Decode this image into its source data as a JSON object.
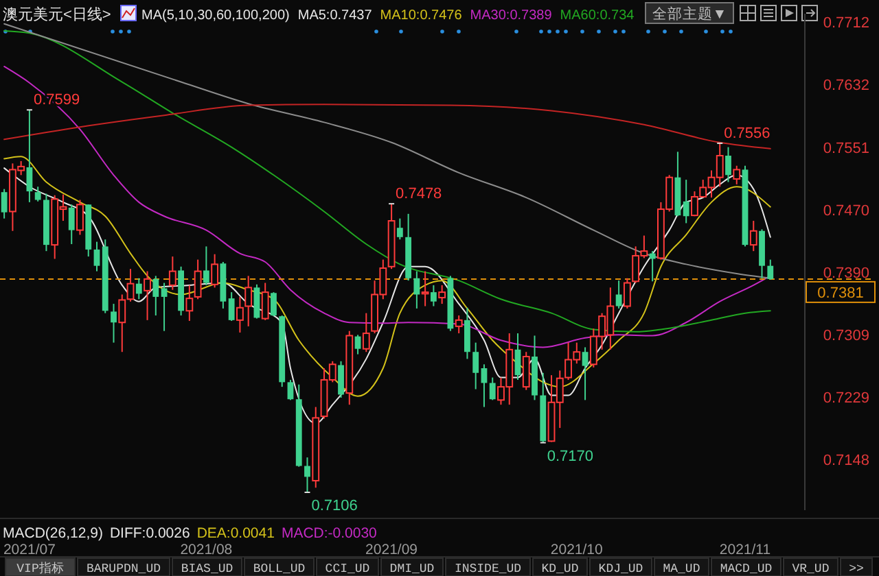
{
  "chart_data": {
    "type": "candlestick",
    "title": "澳元美元<日线>",
    "legend_title": "MA(5,10,30,60,100,200)",
    "legend": "top",
    "categories": [
      null,
      null,
      null,
      "2021/07",
      null,
      null,
      null,
      null,
      null,
      null,
      null,
      null,
      null,
      null,
      null,
      null,
      null,
      null,
      null,
      null,
      null,
      null,
      null,
      null,
      "2021/08",
      null,
      null,
      null,
      null,
      null,
      null,
      null,
      null,
      null,
      null,
      null,
      null,
      null,
      null,
      null,
      null,
      null,
      null,
      null,
      null,
      null,
      "2021/09",
      null,
      null,
      null,
      null,
      null,
      null,
      null,
      null,
      null,
      null,
      null,
      null,
      null,
      null,
      null,
      null,
      null,
      null,
      null,
      null,
      null,
      "2021/10",
      null,
      null,
      null,
      null,
      null,
      null,
      null,
      null,
      null,
      null,
      null,
      null,
      null,
      null,
      null,
      null,
      null,
      null,
      null,
      "2021/11",
      null,
      null,
      null
    ],
    "ohlc": [
      [
        0.7493,
        0.7497,
        0.7459,
        0.7467
      ],
      [
        0.7468,
        0.753,
        0.7443,
        0.7522
      ],
      [
        0.7521,
        0.7533,
        0.7515,
        0.7526
      ],
      [
        0.7525,
        0.7599,
        0.748,
        0.7494
      ],
      [
        0.7493,
        0.75,
        0.7481,
        0.7483
      ],
      [
        0.7483,
        0.7491,
        0.7417,
        0.7425
      ],
      [
        0.7425,
        0.7489,
        0.7407,
        0.7484
      ],
      [
        0.7471,
        0.749,
        0.7456,
        0.7474
      ],
      [
        0.7473,
        0.7477,
        0.7426,
        0.7444
      ],
      [
        0.7444,
        0.7483,
        0.7438,
        0.7477
      ],
      [
        0.7477,
        0.7477,
        0.741,
        0.7419
      ],
      [
        0.7419,
        0.7429,
        0.7391,
        0.7398
      ],
      [
        0.7423,
        0.7432,
        0.7337,
        0.734
      ],
      [
        0.7339,
        0.7349,
        0.7299,
        0.7325
      ],
      [
        0.7325,
        0.7361,
        0.7287,
        0.7354
      ],
      [
        0.7355,
        0.7394,
        0.7352,
        0.7375
      ],
      [
        0.7375,
        0.7382,
        0.7355,
        0.7362
      ],
      [
        0.7366,
        0.7391,
        0.7328,
        0.7381
      ],
      [
        0.7381,
        0.7385,
        0.7334,
        0.7358
      ],
      [
        0.7369,
        0.7376,
        0.7314,
        0.7358
      ],
      [
        0.7373,
        0.741,
        0.7367,
        0.7391
      ],
      [
        0.7392,
        0.7397,
        0.7334,
        0.734
      ],
      [
        0.734,
        0.7373,
        0.7327,
        0.7356
      ],
      [
        0.7358,
        0.7406,
        0.7355,
        0.7391
      ],
      [
        0.7392,
        0.7423,
        0.7373,
        0.7376
      ],
      [
        0.7374,
        0.7413,
        0.737,
        0.74
      ],
      [
        0.7401,
        0.7403,
        0.7343,
        0.7352
      ],
      [
        0.7356,
        0.7364,
        0.7327,
        0.7328
      ],
      [
        0.7328,
        0.7358,
        0.7312,
        0.7344
      ],
      [
        0.7346,
        0.7385,
        0.732,
        0.737
      ],
      [
        0.737,
        0.7374,
        0.733,
        0.7331
      ],
      [
        0.733,
        0.7376,
        0.7328,
        0.7364
      ],
      [
        0.7363,
        0.7364,
        0.7333,
        0.7334
      ],
      [
        0.7333,
        0.7334,
        0.7242,
        0.7248
      ],
      [
        0.7248,
        0.7251,
        0.7225,
        0.7226
      ],
      [
        0.7226,
        0.7245,
        0.7139,
        0.714
      ],
      [
        0.714,
        0.7151,
        0.7106,
        0.7126
      ],
      [
        0.7121,
        0.7216,
        0.7112,
        0.7202
      ],
      [
        0.7204,
        0.7266,
        0.7201,
        0.7251
      ],
      [
        0.7251,
        0.7275,
        0.7248,
        0.7271
      ],
      [
        0.727,
        0.7275,
        0.7228,
        0.7232
      ],
      [
        0.7234,
        0.7314,
        0.7219,
        0.7308
      ],
      [
        0.7307,
        0.7309,
        0.7284,
        0.7291
      ],
      [
        0.7291,
        0.7337,
        0.7287,
        0.7311
      ],
      [
        0.7314,
        0.7379,
        0.7311,
        0.7361
      ],
      [
        0.7361,
        0.7406,
        0.7355,
        0.7395
      ],
      [
        0.7397,
        0.7478,
        0.7394,
        0.7456
      ],
      [
        0.7447,
        0.7459,
        0.7432,
        0.7435
      ],
      [
        0.7435,
        0.7465,
        0.7379,
        0.7382
      ],
      [
        0.7382,
        0.7391,
        0.7343,
        0.7361
      ],
      [
        0.7362,
        0.7391,
        0.7346,
        0.7364
      ],
      [
        0.7364,
        0.7373,
        0.7346,
        0.7352
      ],
      [
        0.7357,
        0.7373,
        0.7349,
        0.7364
      ],
      [
        0.7382,
        0.7385,
        0.7314,
        0.7317
      ],
      [
        0.732,
        0.7334,
        0.7311,
        0.7328
      ],
      [
        0.7328,
        0.7344,
        0.7278,
        0.7287
      ],
      [
        0.7287,
        0.7299,
        0.7239,
        0.726
      ],
      [
        0.7266,
        0.7271,
        0.7216,
        0.7247
      ],
      [
        0.7247,
        0.7254,
        0.7225,
        0.7226
      ],
      [
        0.7225,
        0.7254,
        0.7219,
        0.7242
      ],
      [
        0.7242,
        0.7311,
        0.7219,
        0.729
      ],
      [
        0.729,
        0.7311,
        0.7251,
        0.7257
      ],
      [
        0.7242,
        0.7287,
        0.7238,
        0.7281
      ],
      [
        0.7281,
        0.7308,
        0.7225,
        0.7231
      ],
      [
        0.7231,
        0.726,
        0.717,
        0.7172
      ],
      [
        0.7172,
        0.7257,
        0.7171,
        0.7222
      ],
      [
        0.7222,
        0.7263,
        0.7189,
        0.7253
      ],
      [
        0.7254,
        0.7299,
        0.7251,
        0.7277
      ],
      [
        0.7277,
        0.7299,
        0.7272,
        0.7287
      ],
      [
        0.7287,
        0.7293,
        0.7225,
        0.7269
      ],
      [
        0.7271,
        0.7317,
        0.7267,
        0.7307
      ],
      [
        0.7307,
        0.7337,
        0.729,
        0.7333
      ],
      [
        0.7309,
        0.737,
        0.729,
        0.7346
      ],
      [
        0.7361,
        0.7379,
        0.7343,
        0.7346
      ],
      [
        0.7346,
        0.7382,
        0.7343,
        0.7376
      ],
      [
        0.7378,
        0.7423,
        0.7376,
        0.7411
      ],
      [
        0.7411,
        0.7437,
        0.7408,
        0.7417
      ],
      [
        0.7414,
        0.7417,
        0.7378,
        0.7407
      ],
      [
        0.7408,
        0.748,
        0.7406,
        0.7471
      ],
      [
        0.7471,
        0.7515,
        0.7468,
        0.7512
      ],
      [
        0.7512,
        0.7545,
        0.7462,
        0.7463
      ],
      [
        0.7481,
        0.7509,
        0.7453,
        0.7462
      ],
      [
        0.7463,
        0.7494,
        0.7462,
        0.7487
      ],
      [
        0.7487,
        0.7509,
        0.7486,
        0.7499
      ],
      [
        0.7499,
        0.7521,
        0.7486,
        0.7512
      ],
      [
        0.7512,
        0.7556,
        0.75,
        0.754
      ],
      [
        0.754,
        0.7551,
        0.7506,
        0.7515
      ],
      [
        0.751,
        0.7527,
        0.7503,
        0.7522
      ],
      [
        0.7522,
        0.7527,
        0.7423,
        0.7425
      ],
      [
        0.7425,
        0.7456,
        0.7417,
        0.7443
      ],
      [
        0.7443,
        0.7445,
        0.7382,
        0.7398
      ],
      [
        0.7398,
        0.7406,
        0.738,
        0.7381
      ]
    ],
    "series": [
      {
        "type": "line",
        "name": "MA5:0.7437",
        "color": "#e6e6e6",
        "values": [
          0.7524,
          null,
          null,
          0.75,
          null,
          null,
          null,
          0.748,
          null,
          null,
          0.7462,
          null,
          null,
          null,
          0.7373,
          null,
          0.7352,
          null,
          0.737,
          null,
          null,
          null,
          0.7373,
          null,
          null,
          null,
          0.7376,
          null,
          null,
          0.7349,
          null,
          null,
          null,
          0.7325,
          0.7266,
          null,
          null,
          0.7195,
          null,
          0.7219,
          null,
          null,
          null,
          0.7278,
          null,
          0.7325,
          null,
          null,
          0.7397,
          null,
          0.7397,
          null,
          null,
          null,
          0.7349,
          null,
          null,
          0.7302,
          null,
          0.7254,
          null,
          0.7254,
          null,
          0.7278,
          null,
          0.7231,
          null,
          0.7231,
          null,
          0.7266,
          null,
          0.7296,
          null,
          0.7337,
          null,
          null,
          0.7397,
          null,
          null,
          0.7444,
          null,
          0.748,
          null,
          0.7486,
          null,
          0.7503,
          null,
          0.7515,
          null,
          0.7497,
          null,
          0.7435
        ]
      },
      {
        "type": "line",
        "name": "MA10:0.7476",
        "color": "#d4c21a",
        "values": [
          0.7536,
          null,
          0.7539,
          null,
          null,
          0.7506,
          null,
          null,
          null,
          0.748,
          null,
          null,
          0.7462,
          null,
          null,
          0.7414,
          null,
          0.7385,
          null,
          null,
          null,
          0.7361,
          null,
          null,
          null,
          null,
          0.7376,
          null,
          null,
          0.7367,
          null,
          null,
          0.7355,
          null,
          null,
          0.7302,
          null,
          null,
          null,
          0.7254,
          null,
          null,
          0.723,
          null,
          null,
          0.7266,
          null,
          0.7337,
          null,
          null,
          0.7373,
          null,
          0.7379,
          null,
          null,
          0.7343,
          null,
          null,
          0.7302,
          null,
          null,
          0.7272,
          null,
          null,
          0.7248,
          null,
          0.7242,
          null,
          null,
          null,
          0.7272,
          null,
          null,
          0.7302,
          null,
          null,
          0.7337,
          null,
          0.7397,
          null,
          null,
          0.7438,
          null,
          null,
          0.748,
          null,
          null,
          0.75,
          null,
          null,
          null,
          0.7474
        ]
      },
      {
        "type": "line",
        "name": "MA30:0.7389",
        "color": "#c42ac4",
        "values": [
          0.7655,
          null,
          null,
          0.7634,
          null,
          null,
          null,
          null,
          null,
          0.7574,
          null,
          null,
          null,
          0.7515,
          null,
          null,
          0.748,
          null,
          null,
          0.7462,
          null,
          null,
          null,
          null,
          0.7444,
          null,
          null,
          null,
          0.7414,
          null,
          null,
          0.7403,
          null,
          null,
          0.7367,
          null,
          null,
          null,
          0.7337,
          null,
          null,
          0.7325,
          null,
          null,
          null,
          0.7324,
          null,
          null,
          0.7325,
          null,
          null,
          null,
          null,
          null,
          0.7323,
          null,
          null,
          null,
          null,
          0.7302,
          null,
          null,
          null,
          null,
          0.7293,
          null,
          null,
          null,
          null,
          0.7305,
          null,
          null,
          null,
          0.7309,
          null,
          null,
          null,
          0.7308,
          null,
          null,
          null,
          0.7325,
          null,
          null,
          null,
          0.7352,
          null,
          null,
          null,
          0.7373,
          null,
          0.7385
        ]
      },
      {
        "type": "line",
        "name": "MA60:0.734",
        "color": "#22a822",
        "values": [
          0.7701,
          null,
          null,
          0.7698,
          null,
          null,
          null,
          null,
          null,
          null,
          null,
          null,
          null,
          null,
          0.7635,
          null,
          null,
          null,
          null,
          null,
          0.7595,
          null,
          null,
          null,
          null,
          null,
          null,
          0.7551,
          null,
          null,
          null,
          null,
          0.7515,
          null,
          null,
          null,
          null,
          null,
          0.7468,
          null,
          null,
          null,
          null,
          0.7426,
          null,
          null,
          null,
          0.74,
          null,
          null,
          null,
          null,
          null,
          null,
          0.7379,
          null,
          null,
          null,
          null,
          0.7355,
          null,
          null,
          null,
          null,
          null,
          0.7337,
          null,
          null,
          null,
          null,
          0.7316,
          null,
          null,
          null,
          null,
          0.7313,
          null,
          null,
          0.7316,
          null,
          null,
          null,
          null,
          null,
          0.7328,
          null,
          null,
          null,
          0.7337,
          null,
          null,
          0.734
        ]
      },
      {
        "type": "line",
        "color": "#8c8c8c",
        "values": [
          0.771,
          null,
          null,
          null,
          null,
          null,
          null,
          null,
          null,
          null,
          null,
          null,
          null,
          null,
          null,
          null,
          null,
          null,
          null,
          null,
          null,
          0.7635,
          null,
          null,
          null,
          null,
          null,
          null,
          null,
          0.7607,
          null,
          null,
          null,
          null,
          null,
          null,
          null,
          null,
          0.7583,
          null,
          null,
          null,
          null,
          null,
          null,
          null,
          0.7557,
          null,
          null,
          null,
          null,
          null,
          null,
          null,
          0.7518,
          null,
          null,
          null,
          null,
          null,
          null,
          null,
          0.7486,
          null,
          null,
          null,
          null,
          null,
          null,
          null,
          0.7444,
          null,
          null,
          null,
          null,
          null,
          0.7414,
          null,
          null,
          null,
          null,
          0.74,
          null,
          null,
          null,
          null,
          null,
          0.7388,
          null,
          null,
          null,
          0.7382
        ]
      },
      {
        "type": "line",
        "color": "#c42424",
        "values": [
          0.7561,
          null,
          null,
          null,
          null,
          null,
          null,
          null,
          null,
          0.7577,
          null,
          null,
          null,
          null,
          null,
          null,
          null,
          null,
          null,
          0.7592,
          null,
          null,
          null,
          null,
          null,
          null,
          null,
          null,
          null,
          0.7605,
          null,
          null,
          null,
          null,
          null,
          null,
          null,
          null,
          0.7606,
          null,
          null,
          null,
          null,
          null,
          null,
          null,
          null,
          null,
          null,
          null,
          null,
          null,
          null,
          0.7605,
          null,
          null,
          null,
          null,
          null,
          null,
          null,
          null,
          null,
          null,
          null,
          0.7598,
          null,
          null,
          null,
          null,
          null,
          null,
          null,
          null,
          null,
          null,
          0.758,
          null,
          null,
          null,
          null,
          null,
          null,
          null,
          null,
          0.7557,
          null,
          null,
          null,
          null,
          null,
          0.7549
        ]
      }
    ],
    "ylim": [
      0.7083,
      0.7723
    ],
    "yticks": [
      {
        "value": 0.7148,
        "label": "0.7148"
      },
      {
        "value": 0.7229,
        "label": "0.7229"
      },
      {
        "value": 0.7309,
        "label": "0.7309"
      },
      {
        "value": 0.739,
        "label": "0.7390"
      },
      {
        "value": 0.747,
        "label": "0.7470"
      },
      {
        "value": 0.7551,
        "label": "0.7551"
      },
      {
        "value": 0.7632,
        "label": "0.7632"
      },
      {
        "value": 0.7712,
        "label": "0.7712"
      }
    ],
    "ref_lines": [
      {
        "axis": "y",
        "value": 0.7381,
        "label": "0.7381",
        "color": "#e0900a",
        "line_style": "dashed"
      }
    ],
    "annotations": [
      {
        "text": "0.7599",
        "x": "2021/07",
        "y": 0.7599
      },
      "0.7478",
      "0.7106",
      "0.7170",
      "0.7556",
      "MACD(26,12,9)",
      "DIFF:0.0026",
      "DEA:0.0041",
      "MACD:-0.0030",
      "全部主题▼",
      "VIP指标",
      "BARUPDN_UD",
      "BIAS_UD",
      "BOLL_UD",
      "CCI_UD",
      "DMI_UD",
      "INSIDE_UD",
      "KD_UD",
      "KDJ_UD",
      "MA_UD",
      "MACD_UD",
      "VR_UD",
      ">>"
    ]
  }
}
